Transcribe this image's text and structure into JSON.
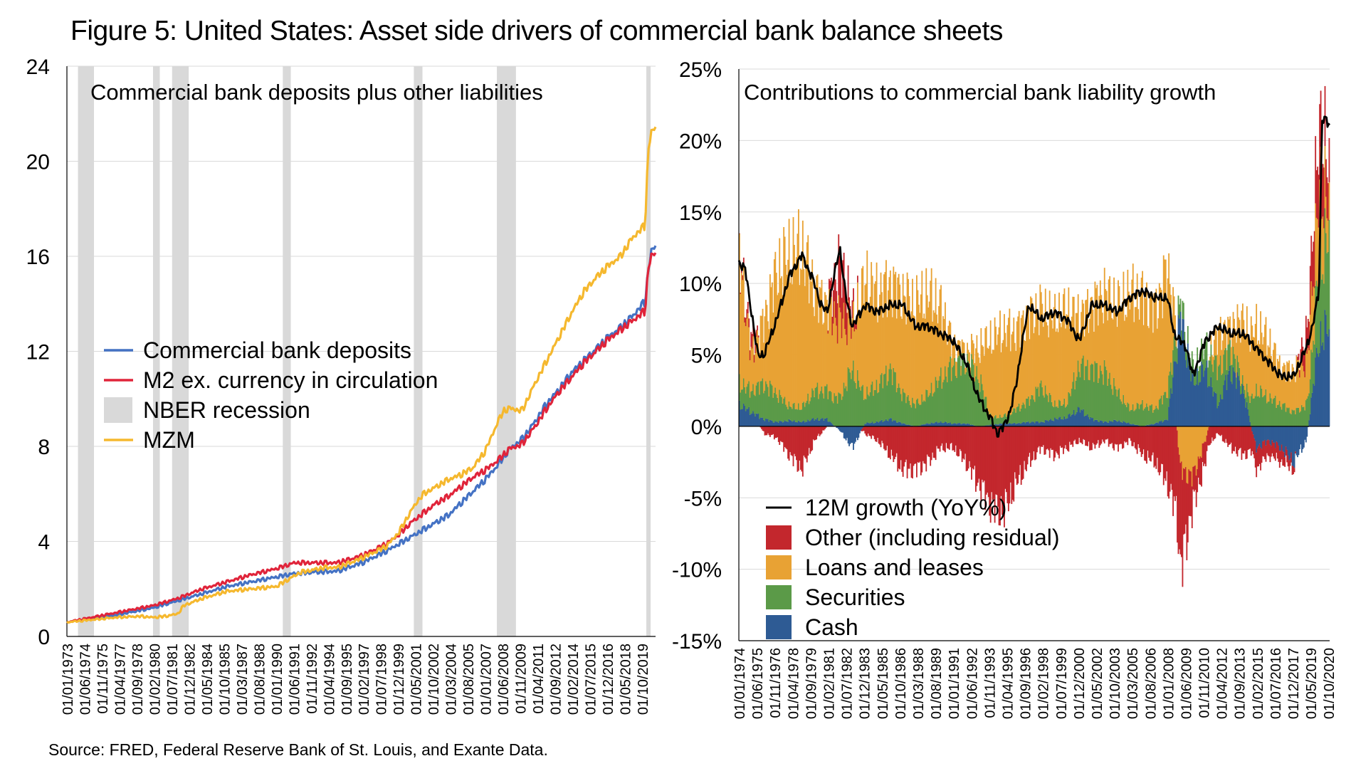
{
  "title": "Figure 5: United States: Asset side drivers of commercial bank balance sheets",
  "source": "Source: FRED, Federal Reserve Bank of St. Louis, and Exante Data.",
  "chart_data": [
    {
      "type": "line",
      "title": "Commercial bank deposits plus other liabilities",
      "ylim": [
        0,
        24
      ],
      "yticks": [
        "0",
        "4",
        "8",
        "12",
        "16",
        "20",
        "24"
      ],
      "xrange": [
        1973.0,
        2020.85
      ],
      "xticks": [
        "01/01/1973",
        "01/06/1974",
        "01/11/1975",
        "01/04/1977",
        "01/09/1978",
        "01/02/1980",
        "01/07/1981",
        "01/12/1982",
        "01/05/1984",
        "01/10/1985",
        "01/03/1987",
        "01/08/1988",
        "01/01/1990",
        "01/06/1991",
        "01/11/1992",
        "01/04/1994",
        "01/09/1995",
        "01/02/1997",
        "01/07/1998",
        "01/12/1999",
        "01/05/2001",
        "01/10/2002",
        "01/03/2004",
        "01/08/2005",
        "01/01/2007",
        "01/06/2008",
        "01/11/2009",
        "01/04/2011",
        "01/09/2012",
        "01/02/2014",
        "01/07/2015",
        "01/12/2016",
        "01/05/2018",
        "01/10/2019"
      ],
      "grid": true,
      "legend": "left-middle",
      "recessions": [
        [
          1973.9,
          1975.2
        ],
        [
          1980.0,
          1980.55
        ],
        [
          1981.55,
          1982.9
        ],
        [
          1990.55,
          1991.2
        ],
        [
          2001.2,
          2001.9
        ],
        [
          2007.95,
          2009.5
        ],
        [
          2020.1,
          2020.4
        ]
      ],
      "series": [
        {
          "name": "Commercial bank deposits",
          "color": "#4472C4",
          "x": [
            1973,
            1975,
            1977,
            1980,
            1982,
            1984,
            1986,
            1988,
            1990,
            1991.5,
            1993,
            1995,
            1997,
            1999,
            2000,
            2001,
            2002,
            2003,
            2004,
            2005,
            2006,
            2007,
            2008,
            2009,
            2010,
            2011,
            2012,
            2013,
            2014,
            2015,
            2016,
            2017,
            2018,
            2019,
            2020,
            2020.25,
            2020.5,
            2020.85
          ],
          "y": [
            0.6,
            0.75,
            0.9,
            1.2,
            1.5,
            1.8,
            2.1,
            2.3,
            2.5,
            2.65,
            2.7,
            2.75,
            3.1,
            3.6,
            3.9,
            4.2,
            4.5,
            4.8,
            5.1,
            5.6,
            6.1,
            6.6,
            7.2,
            7.9,
            8.3,
            9.0,
            9.8,
            10.4,
            11.1,
            11.6,
            12.1,
            12.6,
            13.0,
            13.5,
            14.1,
            15.4,
            16.2,
            16.4
          ]
        },
        {
          "name": "M2 ex. currency in circulation",
          "color": "#E0243A",
          "x": [
            1973,
            1975,
            1977,
            1980,
            1982,
            1984,
            1986,
            1988,
            1990,
            1991.5,
            1993,
            1995,
            1997,
            1999,
            2000,
            2001,
            2002,
            2003,
            2004,
            2005,
            2006,
            2007,
            2008,
            2009,
            2010,
            2011,
            2012,
            2013,
            2014,
            2015,
            2016,
            2017,
            2018,
            2019,
            2020,
            2020.25,
            2020.5,
            2020.85
          ],
          "y": [
            0.6,
            0.8,
            1.0,
            1.3,
            1.6,
            2.0,
            2.3,
            2.6,
            2.85,
            3.1,
            3.1,
            3.1,
            3.4,
            3.9,
            4.3,
            4.8,
            5.2,
            5.6,
            5.9,
            6.3,
            6.7,
            7.0,
            7.4,
            7.9,
            8.1,
            8.8,
            9.6,
            10.3,
            10.9,
            11.5,
            12.0,
            12.5,
            12.9,
            13.3,
            13.7,
            15.5,
            16.0,
            16.1
          ]
        },
        {
          "name": "MZM",
          "color": "#F5B82E",
          "x": [
            1973,
            1975,
            1977,
            1979,
            1980,
            1981,
            1982,
            1982.5,
            1984,
            1986,
            1988,
            1990,
            1992,
            1994,
            1995,
            1996,
            1997,
            1999,
            2000,
            2001,
            2001.5,
            2002,
            2003,
            2004,
            2005,
            2006,
            2007,
            2008,
            2008.5,
            2009,
            2010,
            2011,
            2012,
            2013,
            2014,
            2015,
            2016,
            2017,
            2018,
            2019,
            2020,
            2020.25,
            2020.5,
            2020.85
          ],
          "y": [
            0.6,
            0.7,
            0.8,
            0.85,
            0.8,
            0.85,
            0.95,
            1.3,
            1.6,
            1.9,
            2.0,
            2.1,
            2.7,
            2.9,
            2.9,
            3.1,
            3.3,
            3.8,
            4.4,
            5.3,
            5.7,
            6.0,
            6.3,
            6.6,
            6.8,
            7.1,
            7.8,
            9.0,
            9.5,
            9.6,
            9.5,
            10.6,
            11.6,
            12.6,
            13.6,
            14.5,
            15.1,
            15.6,
            16.0,
            16.8,
            17.3,
            20.5,
            21.2,
            21.4
          ]
        }
      ]
    },
    {
      "type": "area",
      "title": "Contributions to commercial bank liability growth",
      "ylim": [
        -15,
        25
      ],
      "yticks": [
        "-15%",
        "-10%",
        "-5%",
        "0%",
        "5%",
        "10%",
        "15%",
        "20%",
        "25%"
      ],
      "xrange": [
        1974.0,
        2020.85
      ],
      "xticks": [
        "01/01/1974",
        "01/06/1975",
        "01/11/1976",
        "01/04/1978",
        "01/09/1979",
        "01/02/1981",
        "01/07/1982",
        "01/12/1983",
        "01/05/1985",
        "01/10/1986",
        "01/03/1988",
        "01/08/1989",
        "01/01/1991",
        "01/06/1992",
        "01/11/1993",
        "01/04/1995",
        "01/09/1996",
        "01/02/1998",
        "01/07/1999",
        "01/12/2000",
        "01/05/2002",
        "01/10/2003",
        "01/03/2005",
        "01/08/2006",
        "01/01/2008",
        "01/06/2009",
        "01/11/2010",
        "01/04/2012",
        "01/09/2013",
        "01/02/2015",
        "01/07/2016",
        "01/12/2017",
        "01/05/2019",
        "01/10/2020"
      ],
      "grid": true,
      "legend": "bottom-left",
      "stacked_series": [
        {
          "name": "Cash",
          "color": "#2E5B94",
          "x": [
            1974,
            1975,
            1976,
            1977,
            1978,
            1979,
            1980,
            1981,
            1982,
            1983,
            1984,
            1985,
            1986,
            1987,
            1988,
            1989,
            1990,
            1991,
            1992,
            1993,
            1994,
            1995,
            1996,
            1997,
            1998,
            1999,
            2000,
            2001,
            2002,
            2003,
            2004,
            2005,
            2006,
            2007,
            2008,
            2009,
            2010,
            2011,
            2012,
            2013,
            2014,
            2015,
            2016,
            2017,
            2018,
            2019,
            2020,
            2020.85
          ],
          "y": [
            1.5,
            1.0,
            0.5,
            0.3,
            0.4,
            0.3,
            0.5,
            0.5,
            -0.3,
            -1.5,
            0.2,
            0.3,
            0.5,
            0.2,
            0.0,
            0.2,
            0.3,
            0.2,
            0.2,
            0.0,
            0.1,
            0.2,
            0.2,
            0.3,
            0.3,
            0.5,
            0.6,
            1.2,
            0.5,
            0.3,
            0.4,
            0.2,
            0.0,
            0.2,
            0.5,
            7.5,
            3.0,
            4.0,
            1.5,
            4.0,
            2.5,
            -1.5,
            -1.0,
            -1.5,
            -2.5,
            -1.0,
            6.0,
            7.0
          ]
        },
        {
          "name": "Securities",
          "color": "#5B9A48",
          "x": [
            1974,
            1975,
            1976,
            1977,
            1978,
            1979,
            1980,
            1981,
            1982,
            1983,
            1984,
            1985,
            1986,
            1987,
            1988,
            1989,
            1990,
            1991,
            1992,
            1993,
            1994,
            1995,
            1996,
            1997,
            1998,
            1999,
            2000,
            2001,
            2002,
            2003,
            2004,
            2005,
            2006,
            2007,
            2008,
            2009,
            2010,
            2011,
            2012,
            2013,
            2014,
            2015,
            2016,
            2017,
            2018,
            2019,
            2020,
            2020.85
          ],
          "y": [
            1.5,
            1.5,
            2.5,
            2.0,
            1.0,
            1.0,
            2.0,
            2.0,
            2.0,
            4.0,
            2.0,
            2.5,
            3.5,
            2.0,
            1.5,
            2.0,
            3.0,
            4.0,
            4.5,
            3.5,
            0.5,
            0.5,
            1.0,
            1.5,
            2.5,
            1.0,
            1.0,
            3.0,
            3.5,
            3.5,
            2.0,
            1.0,
            1.5,
            1.0,
            2.0,
            1.0,
            1.0,
            1.5,
            2.5,
            1.5,
            0.5,
            2.5,
            2.0,
            1.5,
            1.0,
            1.5,
            5.0,
            6.5
          ]
        },
        {
          "name": "Loans and leases",
          "color": "#E8A234",
          "x": [
            1974,
            1975,
            1976,
            1977,
            1978,
            1979,
            1980,
            1981,
            1982,
            1983,
            1984,
            1985,
            1986,
            1987,
            1988,
            1989,
            1990,
            1991,
            1992,
            1993,
            1994,
            1995,
            1996,
            1997,
            1998,
            1999,
            2000,
            2001,
            2002,
            2003,
            2004,
            2005,
            2006,
            2007,
            2008,
            2009,
            2010,
            2011,
            2012,
            2013,
            2014,
            2015,
            2016,
            2017,
            2018,
            2019,
            2020,
            2020.85
          ],
          "y": [
            9.0,
            2.5,
            4.5,
            8.5,
            10.5,
            11.0,
            7.0,
            6.0,
            5.5,
            3.0,
            8.0,
            6.5,
            6.0,
            7.0,
            7.0,
            7.0,
            5.0,
            1.5,
            0.5,
            2.0,
            5.5,
            6.0,
            5.5,
            6.0,
            5.5,
            6.0,
            6.5,
            3.5,
            4.5,
            5.5,
            6.0,
            8.0,
            7.5,
            7.0,
            8.5,
            -3.0,
            -3.5,
            -1.0,
            2.5,
            1.5,
            4.5,
            4.5,
            4.0,
            2.5,
            3.0,
            3.0,
            5.5,
            2.0
          ]
        },
        {
          "name": "Other (including residual)",
          "color": "#C3272D",
          "x": [
            1974,
            1975,
            1976,
            1977,
            1978,
            1979,
            1980,
            1981,
            1982,
            1983,
            1984,
            1985,
            1986,
            1987,
            1988,
            1989,
            1990,
            1991,
            1992,
            1993,
            1994,
            1995,
            1996,
            1997,
            1998,
            1999,
            2000,
            2001,
            2002,
            2003,
            2004,
            2005,
            2006,
            2007,
            2008,
            2009,
            2010,
            2011,
            2012,
            2013,
            2014,
            2015,
            2016,
            2017,
            2018,
            2019,
            2020,
            2020.85
          ],
          "y": [
            0.0,
            1.0,
            -0.5,
            -0.8,
            -2.0,
            -3.0,
            -1.0,
            0.0,
            4.0,
            1.0,
            -0.5,
            -1.0,
            -2.0,
            -3.0,
            -3.0,
            -2.5,
            -1.5,
            -1.5,
            -2.5,
            -4.0,
            -5.5,
            -6.0,
            -4.0,
            -2.5,
            -1.5,
            -2.0,
            -1.5,
            -1.0,
            -1.5,
            -1.0,
            -1.5,
            -1.0,
            -2.0,
            -2.5,
            -4.0,
            -7.0,
            -2.0,
            -1.5,
            -0.5,
            -1.5,
            -2.0,
            -1.5,
            -1.0,
            -1.0,
            -0.5,
            2.0,
            4.5,
            2.5
          ]
        }
      ],
      "line": {
        "name": "12M growth (YoY%)",
        "color": "#000000",
        "x": [
          1974,
          1974.5,
          1975,
          1975.5,
          1976,
          1977,
          1978,
          1979,
          1980,
          1980.5,
          1981,
          1982,
          1982.5,
          1983,
          1984,
          1985,
          1986,
          1987,
          1988,
          1989,
          1990,
          1991,
          1992,
          1993,
          1994,
          1994.5,
          1995,
          1995.5,
          1996,
          1996.5,
          1997,
          1998,
          1999,
          2000,
          2001,
          2002,
          2003,
          2004,
          2005,
          2006,
          2007,
          2008,
          2008.5,
          2009,
          2009.5,
          2010,
          2011,
          2012,
          2013,
          2014,
          2015,
          2016,
          2017,
          2018,
          2019,
          2019.5,
          2020,
          2020.25,
          2020.5,
          2020.85
        ],
        "y": [
          11.5,
          11.0,
          8.0,
          5.0,
          5.0,
          7.5,
          10.5,
          12.0,
          10.0,
          8.5,
          8.0,
          12.5,
          9.0,
          7.0,
          8.5,
          8.0,
          8.5,
          8.5,
          7.0,
          7.0,
          6.5,
          6.0,
          4.5,
          2.0,
          0.5,
          -0.5,
          0.0,
          1.0,
          3.0,
          6.0,
          8.5,
          7.5,
          8.0,
          7.5,
          6.0,
          8.5,
          8.5,
          8.0,
          9.0,
          9.5,
          9.0,
          9.0,
          6.5,
          6.0,
          5.5,
          3.5,
          6.0,
          7.0,
          6.5,
          6.5,
          5.5,
          4.5,
          3.5,
          3.5,
          5.5,
          7.0,
          9.5,
          21.5,
          21.5,
          21.0
        ]
      }
    }
  ],
  "legends": {
    "left": [
      {
        "label": "Commercial bank deposits",
        "color": "#4472C4",
        "kind": "line"
      },
      {
        "label": "M2 ex. currency in circulation",
        "color": "#E0243A",
        "kind": "line"
      },
      {
        "label": "NBER recession",
        "color": "#D9D9D9",
        "kind": "box"
      },
      {
        "label": "MZM",
        "color": "#F5B82E",
        "kind": "line"
      }
    ],
    "right": [
      {
        "label": "12M growth (YoY%)",
        "color": "#000000",
        "kind": "line"
      },
      {
        "label": "Other (including residual)",
        "color": "#C3272D",
        "kind": "box"
      },
      {
        "label": "Loans and leases",
        "color": "#E8A234",
        "kind": "box"
      },
      {
        "label": "Securities",
        "color": "#5B9A48",
        "kind": "box"
      },
      {
        "label": "Cash",
        "color": "#2E5B94",
        "kind": "box"
      }
    ]
  }
}
